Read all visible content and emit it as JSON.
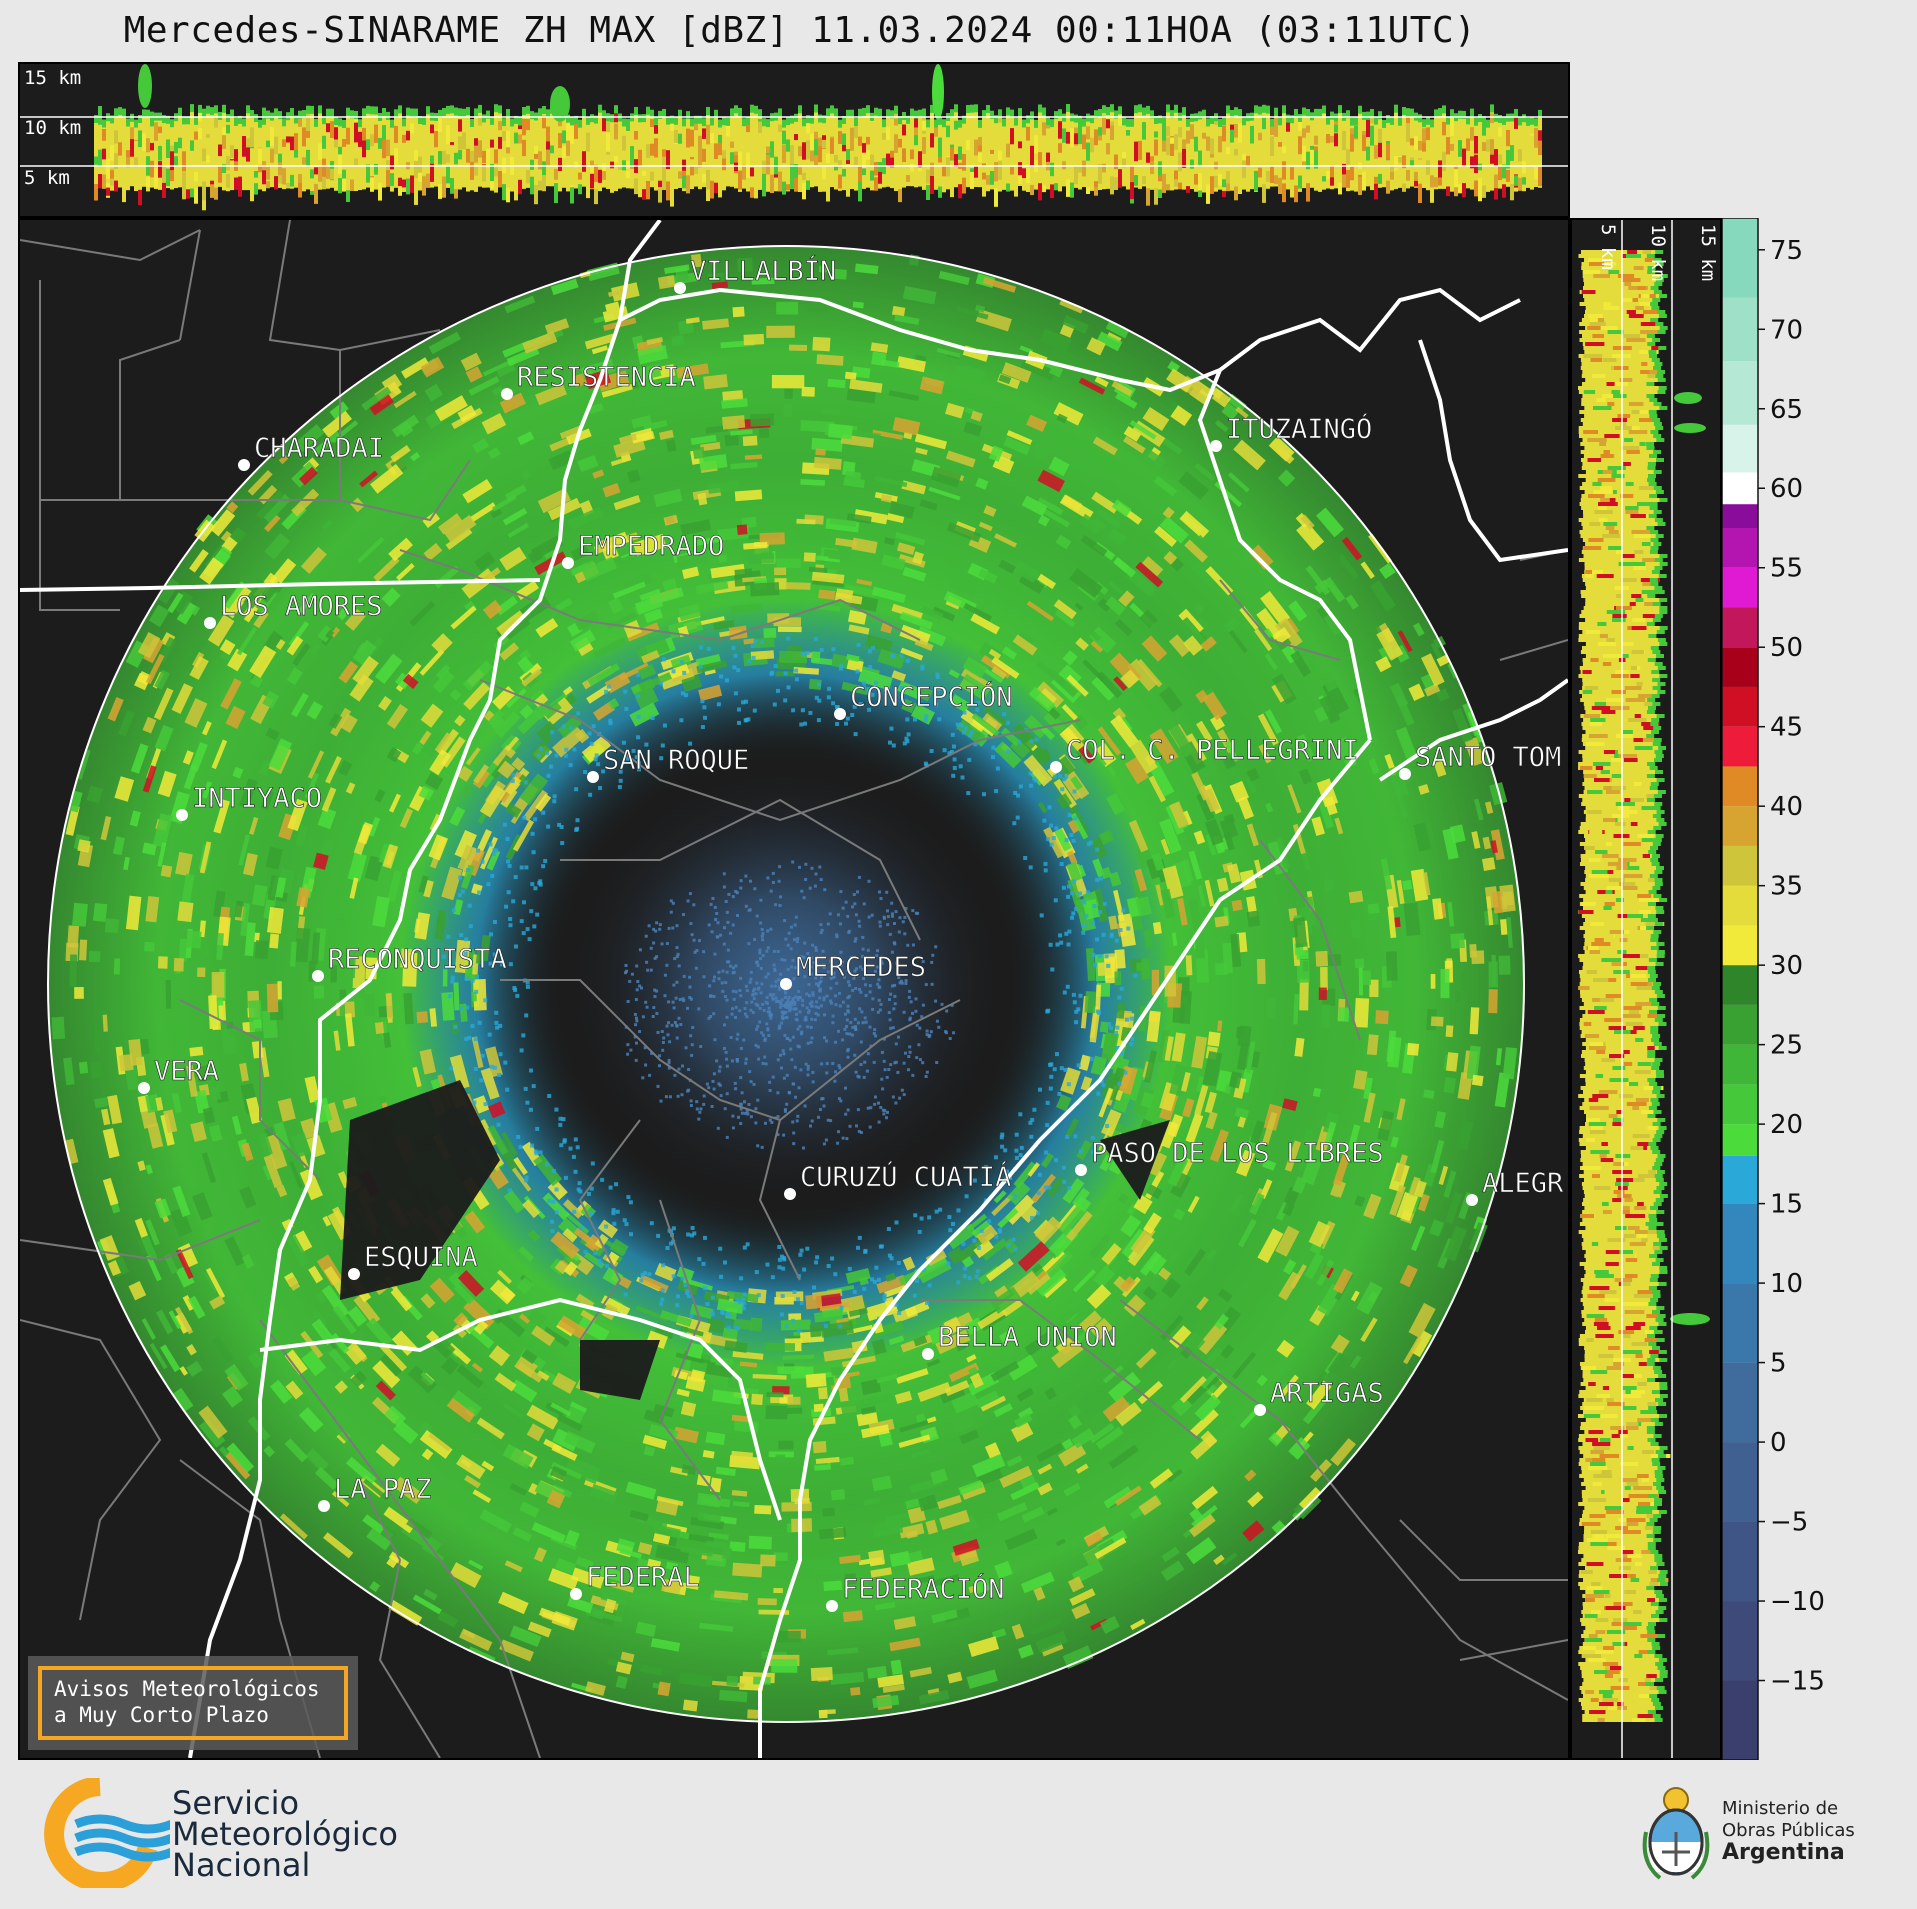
{
  "title": "Mercedes-SINARAME ZH MAX [dBZ] 11.03.2024 00:11HOA (03:11UTC)",
  "top_panel": {
    "height_labels": [
      "15 km",
      "10 km",
      "5 km"
    ]
  },
  "side_panel": {
    "height_labels": [
      "5 km",
      "10 km",
      "15 km"
    ]
  },
  "colorbar": {
    "ticks": [
      75,
      70,
      65,
      60,
      55,
      50,
      45,
      40,
      35,
      30,
      25,
      20,
      15,
      10,
      5,
      0,
      -5,
      -10,
      -15
    ],
    "tick_labels": [
      "75",
      "70",
      "65",
      "60",
      "55",
      "50",
      "45",
      "40",
      "35",
      "30",
      "25",
      "20",
      "15",
      "10",
      "5",
      "0",
      "−5",
      "−10",
      "−15"
    ],
    "range": [
      -20,
      77
    ],
    "colors": [
      {
        "from": -20,
        "to": -15,
        "color": "#3b3f6e"
      },
      {
        "from": -15,
        "to": -10,
        "color": "#3d4a7a"
      },
      {
        "from": -10,
        "to": -5,
        "color": "#3f5585"
      },
      {
        "from": -5,
        "to": 0,
        "color": "#3f6090"
      },
      {
        "from": 0,
        "to": 5,
        "color": "#3f6c9c"
      },
      {
        "from": 5,
        "to": 10,
        "color": "#3a78ab"
      },
      {
        "from": 10,
        "to": 15,
        "color": "#3487bd"
      },
      {
        "from": 15,
        "to": 18,
        "color": "#2aa8d8"
      },
      {
        "from": 18,
        "to": 20,
        "color": "#4bdc3c"
      },
      {
        "from": 20,
        "to": 22.5,
        "color": "#45c83a"
      },
      {
        "from": 22.5,
        "to": 25,
        "color": "#3fb637"
      },
      {
        "from": 25,
        "to": 27.5,
        "color": "#38a131"
      },
      {
        "from": 27.5,
        "to": 30,
        "color": "#2e852a"
      },
      {
        "from": 30,
        "to": 32.5,
        "color": "#f2ea3a"
      },
      {
        "from": 32.5,
        "to": 35,
        "color": "#e3dc3a"
      },
      {
        "from": 35,
        "to": 37.5,
        "color": "#cfc53a"
      },
      {
        "from": 37.5,
        "to": 40,
        "color": "#d8a431"
      },
      {
        "from": 40,
        "to": 42.5,
        "color": "#df8a25"
      },
      {
        "from": 42.5,
        "to": 45,
        "color": "#ee1c3a"
      },
      {
        "from": 45,
        "to": 47.5,
        "color": "#d10f24"
      },
      {
        "from": 47.5,
        "to": 50,
        "color": "#a8001a"
      },
      {
        "from": 50,
        "to": 52.5,
        "color": "#c2185b"
      },
      {
        "from": 52.5,
        "to": 55,
        "color": "#e01ad2"
      },
      {
        "from": 55,
        "to": 57.5,
        "color": "#b414b0"
      },
      {
        "from": 57.5,
        "to": 59,
        "color": "#8a0c9a"
      },
      {
        "from": 59,
        "to": 61,
        "color": "#ffffff"
      },
      {
        "from": 61,
        "to": 64,
        "color": "#d8f4ea"
      },
      {
        "from": 64,
        "to": 68,
        "color": "#b5e9d6"
      },
      {
        "from": 68,
        "to": 72,
        "color": "#9fe0c9"
      },
      {
        "from": 72,
        "to": 77,
        "color": "#86d9bd"
      }
    ]
  },
  "cities": [
    {
      "name": "VILLALBÍN"
    },
    {
      "name": "RESISTENCIA"
    },
    {
      "name": "CHARADAI"
    },
    {
      "name": "ITUZAINGÓ"
    },
    {
      "name": "EMPEDRADO"
    },
    {
      "name": "LOS AMORES"
    },
    {
      "name": "CONCEPCIÓN"
    },
    {
      "name": "SAN ROQUE"
    },
    {
      "name": "COL. C. PELLEGRINI"
    },
    {
      "name": "SANTO TOM"
    },
    {
      "name": "INTIYACO"
    },
    {
      "name": "RECONQUISTA"
    },
    {
      "name": "MERCEDES"
    },
    {
      "name": "VERA"
    },
    {
      "name": "PASO DE LOS LIBRES"
    },
    {
      "name": "CURUZÚ CUATIÁ"
    },
    {
      "name": "ALEGR"
    },
    {
      "name": "ESQUINA"
    },
    {
      "name": "BELLA UNION"
    },
    {
      "name": "ARTIGAS"
    },
    {
      "name": "LA PAZ"
    },
    {
      "name": "FEDERAL"
    },
    {
      "name": "FEDERACIÓN"
    }
  ],
  "badge": {
    "line1": "Avisos Meteorológicos",
    "line2": "a Muy Corto Plazo"
  },
  "footer": {
    "smn_line1": "Servicio",
    "smn_line2": "Meteorológico",
    "smn_line3": "Nacional",
    "ministry_line1": "Ministerio de",
    "ministry_line2": "Obras Públicas",
    "ministry_line3": "Argentina"
  },
  "palette": {
    "background": "#1c1c1c",
    "borders": "#ffffff",
    "admin_lines": "#808080"
  }
}
